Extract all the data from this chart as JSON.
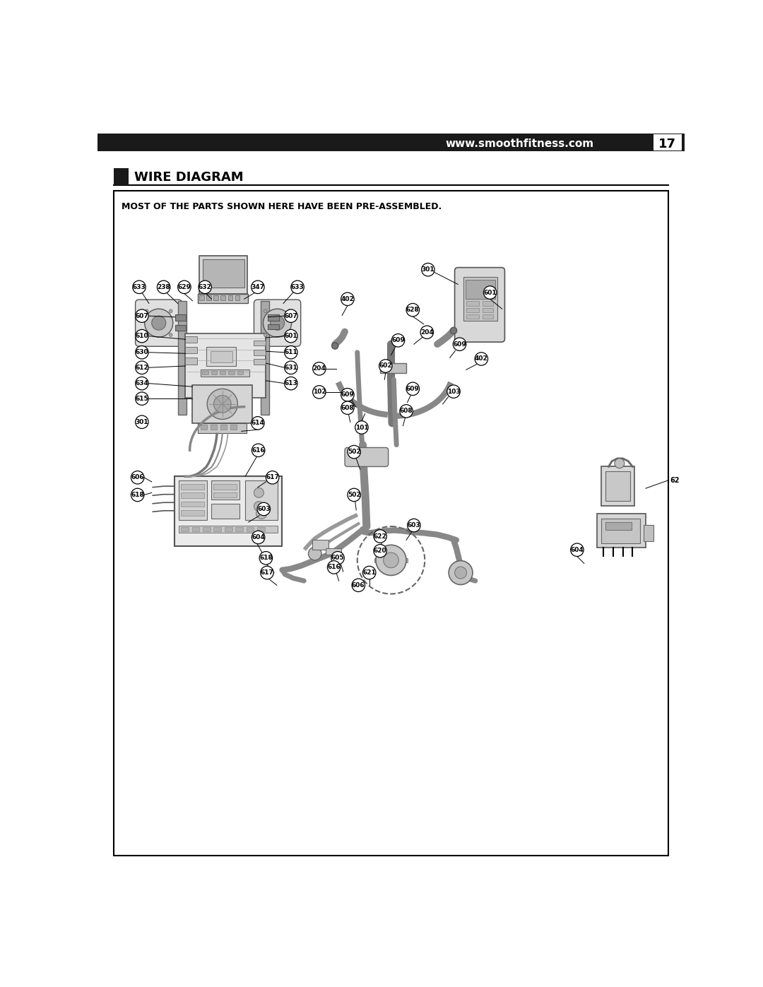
{
  "page_bg": "#ffffff",
  "header_bar_color": "#1a1a1a",
  "header_text": "www.smoothfitness.com",
  "header_page_num": "17",
  "header_text_color": "#ffffff",
  "header_page_num_color": "#000000",
  "section_bar_color": "#1a1a1a",
  "section_title": "WIRE DIAGRAM",
  "note_text": "MOST OF THE PARTS SHOWN HERE HAVE BEEN PRE-ASSEMBLED.",
  "note_text_color": "#000000",
  "part_label_bg": "#ffffff",
  "part_label_border": "#000000",
  "part_label_text_color": "#000000",
  "line_color": "#000000"
}
